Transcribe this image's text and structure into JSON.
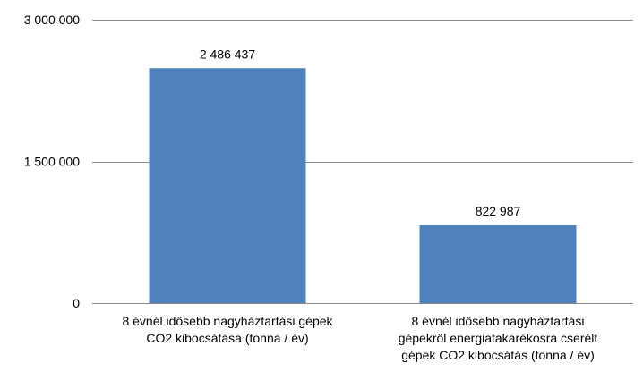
{
  "chart_data": {
    "type": "bar",
    "title": "",
    "xlabel": "",
    "ylabel": "",
    "categories": [
      [
        "8 évnél idősebb nagyháztartási gépek",
        "CO2 kibocsátása (tonna / év)"
      ],
      [
        "8 évnél idősebb nagyháztartási",
        "gépekről energiatakarékosra cserélt",
        "gépek CO2 kibocsátás (tonna / év)"
      ]
    ],
    "values": [
      2486437,
      822987
    ],
    "data_labels": [
      "2 486 437",
      "822 987"
    ],
    "ylim": [
      0,
      3000000
    ],
    "yticks": [
      0,
      1500000,
      3000000
    ],
    "ytick_labels": [
      "0",
      "1 500 000",
      "3 000 000"
    ],
    "grid": true,
    "legend": "none",
    "colors": {
      "bar": "#4F81BD",
      "grid": "#878787",
      "text": "#000000"
    }
  }
}
